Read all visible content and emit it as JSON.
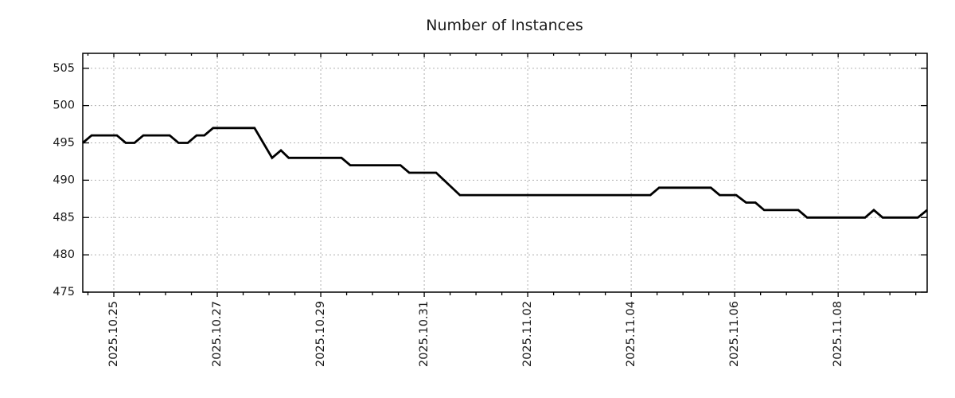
{
  "chart_data": {
    "type": "line",
    "title": "Number of Instances",
    "xlabel": "",
    "ylabel": "",
    "grid": true,
    "legend": false,
    "x_axis": {
      "unit": "date",
      "tick_labels": [
        "2025.10.25",
        "2025.10.27",
        "2025.10.29",
        "2025.10.31",
        "2025.11.02",
        "2025.11.04",
        "2025.11.06",
        "2025.11.08"
      ],
      "tick_day_offsets": [
        0,
        2,
        4,
        6,
        8,
        10,
        12,
        14
      ],
      "minor_tick_interval_days": 0.5,
      "range_day_offsets": [
        -0.6,
        15.72
      ]
    },
    "y_axis": {
      "ticks": [
        475,
        480,
        485,
        490,
        495,
        500,
        505
      ],
      "range": [
        475,
        507
      ]
    },
    "series": [
      {
        "name": "instances",
        "color": "#000000",
        "points": [
          [
            -0.6,
            495
          ],
          [
            -0.43,
            496
          ],
          [
            0.06,
            496
          ],
          [
            0.23,
            495
          ],
          [
            0.4,
            495
          ],
          [
            0.57,
            496
          ],
          [
            1.08,
            496
          ],
          [
            1.25,
            495
          ],
          [
            1.43,
            495
          ],
          [
            1.6,
            496
          ],
          [
            1.75,
            496
          ],
          [
            1.92,
            497
          ],
          [
            2.72,
            497
          ],
          [
            3.06,
            493
          ],
          [
            3.23,
            494
          ],
          [
            3.38,
            493
          ],
          [
            4.4,
            493
          ],
          [
            4.57,
            492
          ],
          [
            5.54,
            492
          ],
          [
            5.71,
            491
          ],
          [
            6.23,
            491
          ],
          [
            6.69,
            488
          ],
          [
            10.37,
            488
          ],
          [
            10.54,
            489
          ],
          [
            11.54,
            489
          ],
          [
            11.71,
            488
          ],
          [
            12.03,
            488
          ],
          [
            12.22,
            487
          ],
          [
            12.4,
            487
          ],
          [
            12.57,
            486
          ],
          [
            13.23,
            486
          ],
          [
            13.4,
            485
          ],
          [
            14.52,
            485
          ],
          [
            14.69,
            486
          ],
          [
            14.86,
            485
          ],
          [
            15.54,
            485
          ],
          [
            15.72,
            486
          ]
        ]
      }
    ],
    "colors": {
      "line": "#000000",
      "grid": "#b0b0b0",
      "border": "#000000",
      "background": "#ffffff",
      "text": "#1a1a1a"
    }
  }
}
